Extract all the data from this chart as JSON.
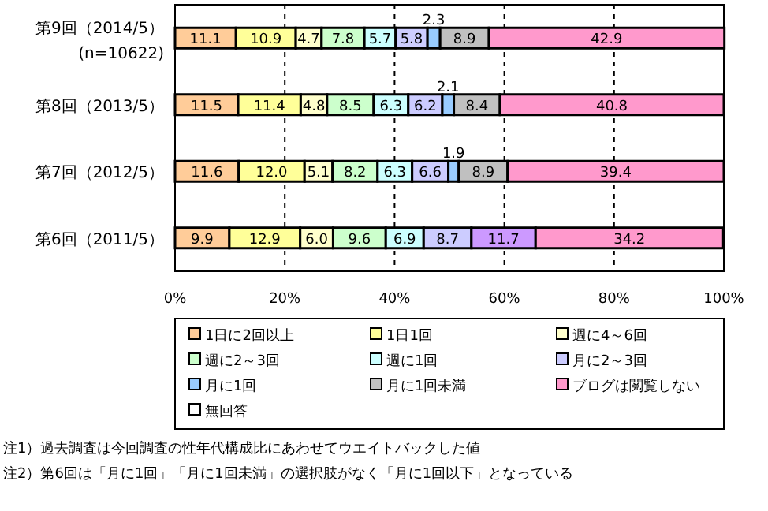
{
  "chart_data": {
    "type": "bar",
    "orientation": "horizontal",
    "stacked": true,
    "grid": "x",
    "legend": "bottom",
    "categories": [
      "第9回（2014/5）\n(n=10622)",
      "第8回（2013/5）",
      "第7回（2012/5）",
      "第6回（2011/5）"
    ],
    "xlim": [
      0,
      100
    ],
    "xticks": [
      {
        "value": 0,
        "label": "0%"
      },
      {
        "value": 20,
        "label": "20%"
      },
      {
        "value": 40,
        "label": "40%"
      },
      {
        "value": 60,
        "label": "60%"
      },
      {
        "value": 80,
        "label": "80%"
      },
      {
        "value": 100,
        "label": "100%"
      }
    ],
    "series": [
      {
        "name": "1日に2回以上",
        "color": "#ffcc99",
        "values": [
          11.1,
          11.5,
          11.6,
          9.9
        ],
        "value_labels": [
          "11.1",
          "11.5",
          "11.6",
          "9.9"
        ]
      },
      {
        "name": "1日1回",
        "color": "#ffff99",
        "values": [
          10.9,
          11.4,
          12.0,
          12.9
        ],
        "value_labels": [
          "10.9",
          "11.4",
          "12.0",
          "12.9"
        ]
      },
      {
        "name": "週に4～6回",
        "color": "#ffffcc",
        "values": [
          4.7,
          4.8,
          5.1,
          6.0
        ],
        "value_labels": [
          "4.7",
          "4.8",
          "5.1",
          "6.0"
        ]
      },
      {
        "name": "週に2～3回",
        "color": "#ccffcc",
        "values": [
          7.8,
          8.5,
          8.2,
          9.6
        ],
        "value_labels": [
          "7.8",
          "8.5",
          "8.2",
          "9.6"
        ]
      },
      {
        "name": "週に1回",
        "color": "#ccffff",
        "values": [
          5.7,
          6.3,
          6.3,
          6.9
        ],
        "value_labels": [
          "5.7",
          "6.3",
          "6.3",
          "6.9"
        ]
      },
      {
        "name": "月に2～3回",
        "color": "#ccccff",
        "values": [
          5.8,
          6.2,
          6.6,
          8.7
        ],
        "value_labels": [
          "5.8",
          "6.2",
          "6.6",
          "8.7"
        ]
      },
      {
        "name": "月に1回",
        "color": "#99ccff",
        "values": [
          2.3,
          2.1,
          1.9,
          null
        ],
        "value_labels": [
          "2.3",
          "2.1",
          "1.9",
          null
        ]
      },
      {
        "name": "月に1回未満",
        "color": "#c0c0c0",
        "values": [
          8.9,
          8.4,
          8.9,
          null
        ],
        "value_labels": [
          "8.9",
          "8.4",
          "8.9",
          null
        ]
      },
      {
        "color": "#cc99ff",
        "values": [
          null,
          null,
          null,
          11.7
        ],
        "value_labels": [
          null,
          null,
          null,
          "11.7"
        ]
      },
      {
        "name": "ブログは閲覧しない",
        "color": "#ff99cc",
        "values": [
          42.9,
          40.8,
          39.4,
          34.2
        ],
        "value_labels": [
          "42.9",
          "40.8",
          "39.4",
          "34.2"
        ]
      },
      {
        "name": "無回答",
        "color": "#ffffff",
        "values": [
          null,
          null,
          null,
          null
        ]
      }
    ],
    "annotations": [
      "注1）過去調査は今回調査の性年代構成比にあわせてウエイトバックした値",
      "注2）第6回は「月に1回」「月に1回未満」の選択肢がなく「月に1回以下」となっている"
    ]
  }
}
